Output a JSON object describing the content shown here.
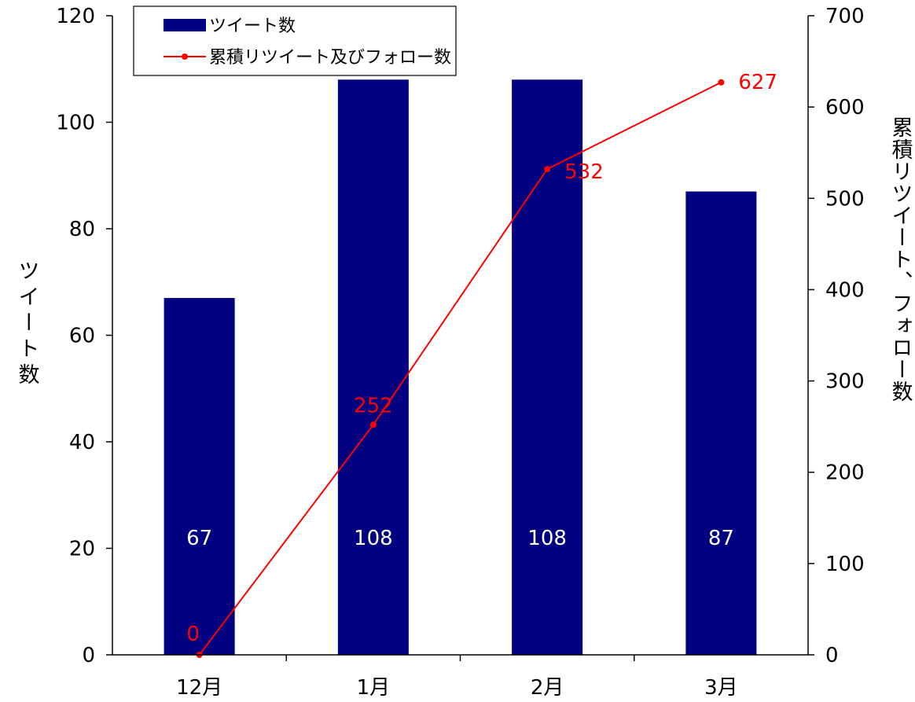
{
  "colors": {
    "bar": "#000080",
    "line": "#ff0000",
    "axis": "#000000"
  },
  "chart_data": {
    "type": "bar",
    "categories": [
      "12月",
      "1月",
      "2月",
      "3月"
    ],
    "series": [
      {
        "name": "ツイート数",
        "kind": "bar",
        "axis": "left",
        "values": [
          67,
          108,
          108,
          87
        ]
      },
      {
        "name": "累積リツイート及びフォロー数",
        "kind": "line",
        "axis": "right",
        "values": [
          0,
          252,
          532,
          627
        ]
      }
    ],
    "ylabel": "ツイート数",
    "y2label": "累積リツイート、フォロー数",
    "ylim": [
      0,
      120
    ],
    "y2lim": [
      0,
      700
    ],
    "yticks": [
      0,
      20,
      40,
      60,
      80,
      100,
      120
    ],
    "y2ticks": [
      0,
      100,
      200,
      300,
      400,
      500,
      600,
      700
    ],
    "grid": false,
    "legend_position": "top-left"
  }
}
